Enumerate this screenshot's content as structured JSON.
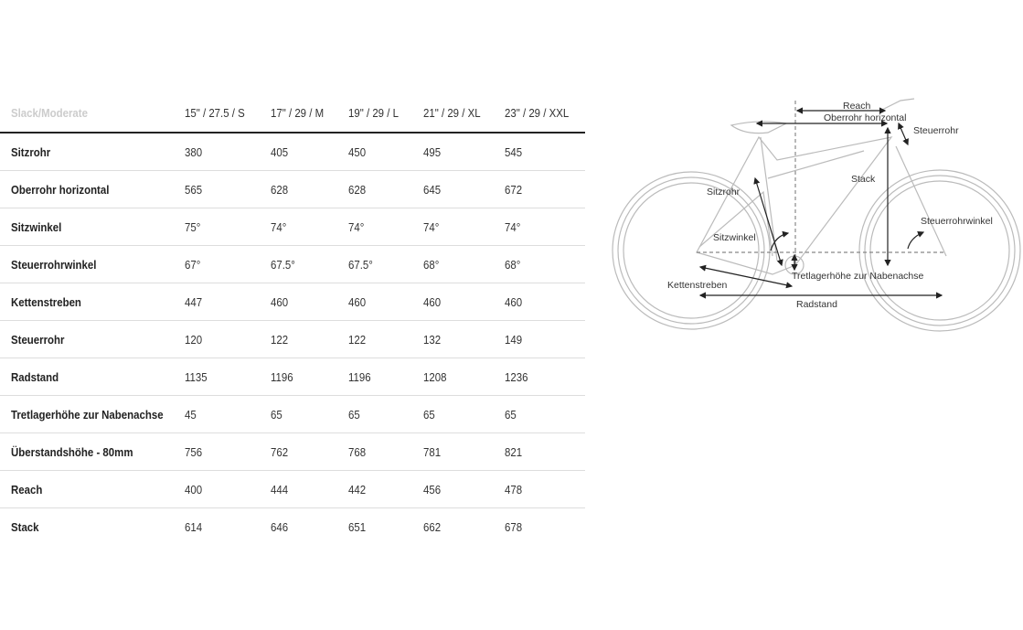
{
  "table": {
    "header": [
      "Slack/Moderate",
      "15\" / 27.5 / S",
      "17\" / 29 / M",
      "19\" / 29 / L",
      "21\" / 29 / XL",
      "23\" / 29 / XXL"
    ],
    "rows": [
      [
        "Sitzrohr",
        "380",
        "405",
        "450",
        "495",
        "545"
      ],
      [
        "Oberrohr horizontal",
        "565",
        "628",
        "628",
        "645",
        "672"
      ],
      [
        "Sitzwinkel",
        "75°",
        "74°",
        "74°",
        "74°",
        "74°"
      ],
      [
        "Steuerrohrwinkel",
        "67°",
        "67.5°",
        "67.5°",
        "68°",
        "68°"
      ],
      [
        "Kettenstreben",
        "447",
        "460",
        "460",
        "460",
        "460"
      ],
      [
        "Steuerrohr",
        "120",
        "122",
        "122",
        "132",
        "149"
      ],
      [
        "Radstand",
        "1135",
        "1196",
        "1196",
        "1208",
        "1236"
      ],
      [
        "Tretlagerhöhe zur Nabenachse",
        "45",
        "65",
        "65",
        "65",
        "65"
      ],
      [
        "Überstandshöhe - 80mm",
        "756",
        "762",
        "768",
        "781",
        "821"
      ],
      [
        "Reach",
        "400",
        "444",
        "442",
        "456",
        "478"
      ],
      [
        "Stack",
        "614",
        "646",
        "651",
        "662",
        "678"
      ]
    ]
  },
  "diagram": {
    "labels": {
      "reach": "Reach",
      "top_tube": "Oberrohr horizontal",
      "head_tube": "Steuerrohr",
      "stack": "Stack",
      "seat_tube": "Sitzrohr",
      "head_angle": "Steuerrohrwinkel",
      "seat_angle": "Sitzwinkel",
      "bb_drop": "Tretlagerhöhe zur Nabenachse",
      "chainstay": "Kettenstreben",
      "wheelbase": "Radstand"
    }
  }
}
